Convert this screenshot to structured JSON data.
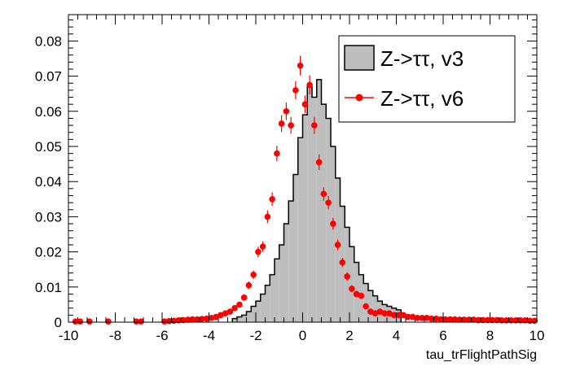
{
  "chart_data": {
    "type": "histogram",
    "xlabel": "tau_trFlightPathSig",
    "ylabel": "",
    "xlim": [
      -10,
      10
    ],
    "ylim": [
      0,
      0.0875
    ],
    "x_ticks": [
      -10,
      -8,
      -6,
      -4,
      -2,
      0,
      2,
      4,
      6,
      8,
      10
    ],
    "y_ticks": [
      0,
      0.01,
      0.02,
      0.03,
      0.04,
      0.05,
      0.06,
      0.07,
      0.08
    ],
    "y_tick_labels": [
      "0",
      "0.01",
      "0.02",
      "0.03",
      "0.04",
      "0.05",
      "0.06",
      "0.07",
      "0.08"
    ],
    "bin_width": 0.2,
    "grid": false,
    "legend_position": "top-right",
    "series": [
      {
        "name": "Z->ττ, v3",
        "style": "filled-histogram",
        "fill_color": "#bebebe",
        "line_color": "#000000",
        "bins_from": -3.0,
        "values": [
          0.001,
          0.0015,
          0.002,
          0.003,
          0.0045,
          0.006,
          0.008,
          0.0105,
          0.0135,
          0.018,
          0.022,
          0.028,
          0.0345,
          0.042,
          0.0525,
          0.059,
          0.067,
          0.064,
          0.069,
          0.062,
          0.058,
          0.05,
          0.041,
          0.033,
          0.027,
          0.0215,
          0.017,
          0.0135,
          0.011,
          0.009,
          0.0075,
          0.006,
          0.005,
          0.0045,
          0.004,
          0.0035
        ]
      },
      {
        "name": "Z->ττ, v6",
        "style": "markers-with-errors",
        "color": "#ff0000",
        "x": [
          -9.7,
          -9.5,
          -9.1,
          -8.3,
          -7.1,
          -6.9,
          -5.9,
          -5.7,
          -5.5,
          -5.3,
          -5.1,
          -4.9,
          -4.7,
          -4.5,
          -4.3,
          -4.1,
          -3.9,
          -3.7,
          -3.5,
          -3.3,
          -3.1,
          -2.9,
          -2.7,
          -2.5,
          -2.3,
          -2.1,
          -1.9,
          -1.7,
          -1.5,
          -1.3,
          -1.1,
          -0.9,
          -0.7,
          -0.5,
          -0.3,
          -0.1,
          0.1,
          0.3,
          0.5,
          0.7,
          0.9,
          1.1,
          1.3,
          1.5,
          1.7,
          1.9,
          2.1,
          2.3,
          2.5,
          2.7,
          2.9,
          3.1,
          3.3,
          3.5,
          3.7,
          3.9,
          4.1,
          4.3,
          4.5,
          4.7,
          4.9,
          5.1,
          5.3,
          5.5,
          5.7,
          5.9,
          6.1,
          6.3,
          6.5,
          6.7,
          6.9,
          7.1,
          7.3,
          7.5,
          7.7,
          7.9,
          8.1,
          8.3,
          8.5,
          8.7,
          8.9,
          9.1,
          9.3,
          9.5,
          9.7,
          9.9
        ],
        "values": [
          0.0002,
          0.0002,
          0.0002,
          0.0002,
          0.0002,
          0.0002,
          0.0002,
          0.0003,
          0.0004,
          0.0005,
          0.0006,
          0.0007,
          0.0008,
          0.0008,
          0.0009,
          0.001,
          0.0012,
          0.0015,
          0.002,
          0.0025,
          0.003,
          0.004,
          0.005,
          0.007,
          0.0105,
          0.0135,
          0.02,
          0.0215,
          0.03,
          0.035,
          0.048,
          0.0565,
          0.06,
          0.056,
          0.066,
          0.073,
          0.062,
          0.0675,
          0.056,
          0.0455,
          0.0365,
          0.034,
          0.028,
          0.022,
          0.017,
          0.013,
          0.0095,
          0.008,
          0.0075,
          0.0045,
          0.003,
          0.0025,
          0.003,
          0.0025,
          0.0025,
          0.002,
          0.002,
          0.002,
          0.0015,
          0.0015,
          0.0012,
          0.0012,
          0.0012,
          0.001,
          0.001,
          0.0008,
          0.0008,
          0.0008,
          0.0008,
          0.0007,
          0.0007,
          0.0007,
          0.0007,
          0.0006,
          0.0006,
          0.0006,
          0.0006,
          0.0006,
          0.0005,
          0.0005,
          0.0005,
          0.0005,
          0.0005,
          0.0005,
          0.0004,
          0.0004
        ],
        "errors": [
          0.0003,
          0.0003,
          0.0003,
          0.0003,
          0.0003,
          0.0003,
          0.0003,
          0.0003,
          0.0003,
          0.0003,
          0.0004,
          0.0004,
          0.0004,
          0.0004,
          0.0004,
          0.0004,
          0.0004,
          0.0005,
          0.0005,
          0.0005,
          0.0006,
          0.0007,
          0.0008,
          0.0009,
          0.0011,
          0.0012,
          0.0015,
          0.0015,
          0.0018,
          0.0019,
          0.0022,
          0.0024,
          0.0025,
          0.0024,
          0.0026,
          0.0028,
          0.0025,
          0.0027,
          0.0024,
          0.0022,
          0.0019,
          0.0019,
          0.0017,
          0.0015,
          0.0013,
          0.0012,
          0.001,
          0.0009,
          0.0009,
          0.0007,
          0.0006,
          0.0005,
          0.0006,
          0.0005,
          0.0005,
          0.0005,
          0.0005,
          0.0005,
          0.0004,
          0.0004,
          0.0004,
          0.0004,
          0.0004,
          0.0003,
          0.0003,
          0.0003,
          0.0003,
          0.0003,
          0.0003,
          0.0003,
          0.0003,
          0.0003,
          0.0003,
          0.0003,
          0.0003,
          0.0003,
          0.0003,
          0.0003,
          0.0003,
          0.0003,
          0.0003,
          0.0003,
          0.0003,
          0.0003,
          0.0003,
          0.0003
        ]
      }
    ]
  }
}
